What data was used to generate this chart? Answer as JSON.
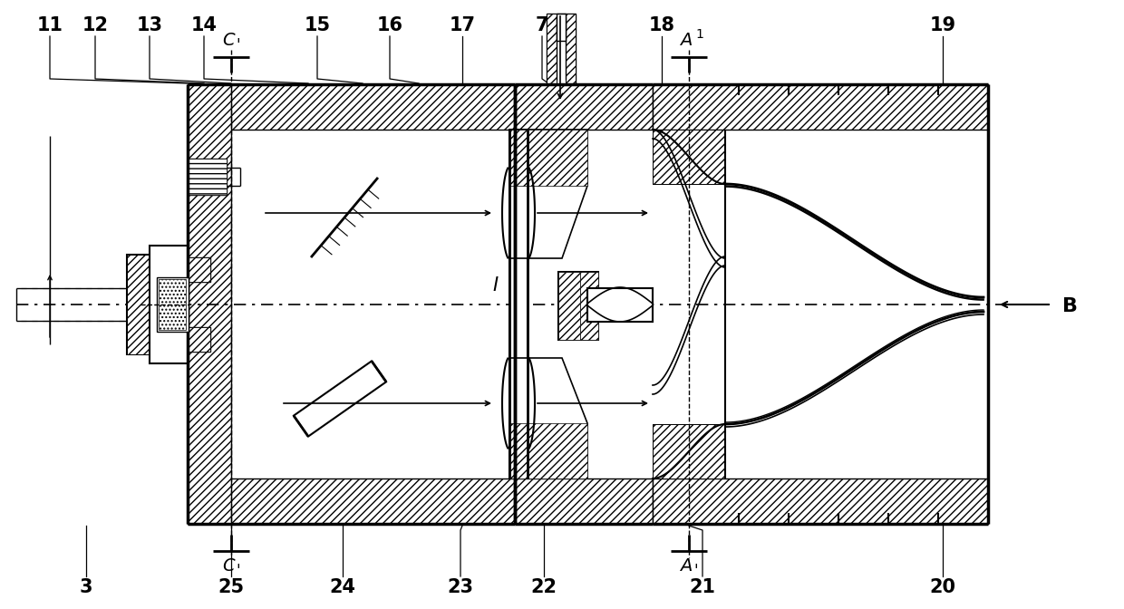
{
  "bg": "#ffffff",
  "lc": "#000000",
  "labels_top": [
    "11",
    "12",
    "13",
    "14",
    "15",
    "16",
    "17",
    "7",
    "18",
    "19"
  ],
  "labels_top_x": [
    55,
    105,
    165,
    225,
    350,
    430,
    510,
    598,
    730,
    1040
  ],
  "labels_bot": [
    "3",
    "25",
    "24",
    "23",
    "22",
    "21",
    "20"
  ],
  "labels_bot_x": [
    95,
    255,
    378,
    508,
    600,
    775,
    1040
  ],
  "fs": 15
}
